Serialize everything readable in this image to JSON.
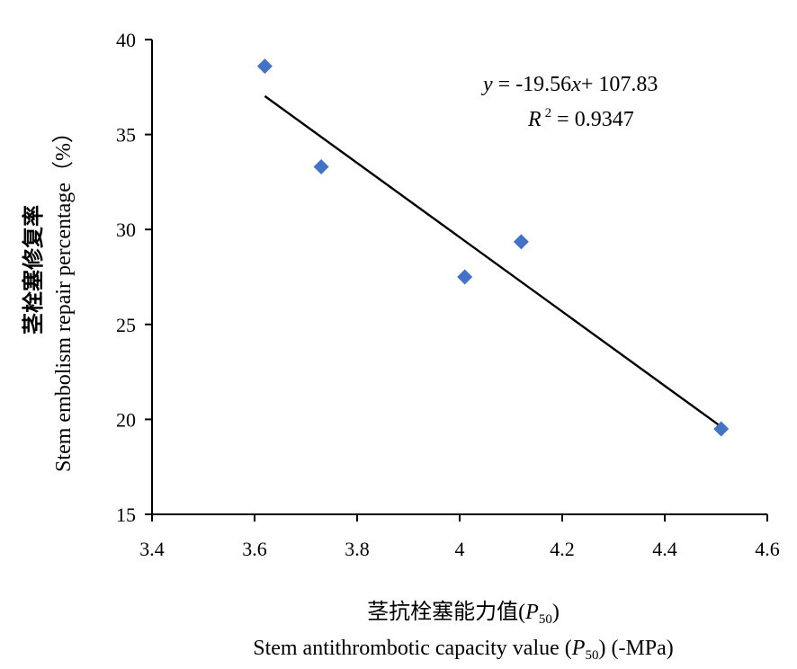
{
  "chart_data": {
    "type": "scatter",
    "x_axis": {
      "label_cn": "茎抗栓塞能力值",
      "label_en_prefix": "Stem antithrombotic capacity value",
      "label_en_suffix": "(-MPa)",
      "symbol_base": "P",
      "symbol_sub": "50",
      "range": [
        3.4,
        4.6
      ],
      "ticks": [
        3.4,
        3.6,
        3.8,
        4,
        4.2,
        4.4,
        4.6
      ],
      "tick_labels": [
        "3.4",
        "3.6",
        "3.8",
        "4",
        "4.2",
        "4.4",
        "4.6"
      ]
    },
    "y_axis": {
      "label_cn": "茎栓塞修复率",
      "label_en": "Stem embolism repair percentage（%）",
      "range": [
        15,
        40
      ],
      "ticks": [
        15,
        20,
        25,
        30,
        35,
        40
      ],
      "tick_labels": [
        "15",
        "20",
        "25",
        "30",
        "35",
        "40"
      ]
    },
    "points": [
      {
        "x": 3.62,
        "y": 38.6
      },
      {
        "x": 3.73,
        "y": 33.3
      },
      {
        "x": 4.01,
        "y": 27.5
      },
      {
        "x": 4.12,
        "y": 29.35
      },
      {
        "x": 4.51,
        "y": 19.5
      }
    ],
    "trendline": {
      "slope": -19.56,
      "intercept": 107.83,
      "x_range": [
        3.62,
        4.51
      ],
      "equation_parts": {
        "y": "y",
        "middle": " = -19.56",
        "x": "x",
        "rest": "+ 107.83"
      },
      "r2_parts": {
        "r": "R",
        "sup": "2",
        "rest": " = 0.9347"
      }
    },
    "marker_color": "#4472C4",
    "line_color": "#000000",
    "grid": false,
    "legend": "none"
  }
}
